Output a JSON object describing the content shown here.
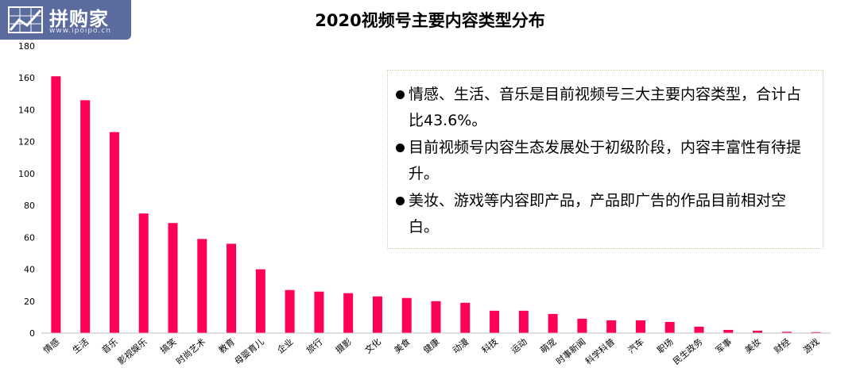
{
  "brand": {
    "name": "拼购家",
    "url": "www.ipoipo.cn"
  },
  "notes": [
    "情感、生活、音乐是目前视频号三大主要内容类型，合计占比43.6%。",
    "目前视频号内容生态发展处于初级阶段，内容丰富性有待提升。",
    "美妆、游戏等内容即产品，产品即广告的作品目前相对空白。"
  ],
  "chart_data": {
    "type": "bar",
    "title": "2020视频号主要内容类型分布",
    "xlabel": "",
    "ylabel": "",
    "ylim": [
      0,
      180
    ],
    "yticks": [
      0,
      20,
      40,
      60,
      80,
      100,
      120,
      140,
      160,
      180
    ],
    "grid": false,
    "categories": [
      "情感",
      "生活",
      "音乐",
      "影视娱乐",
      "搞笑",
      "时尚艺术",
      "教育",
      "母婴育儿",
      "企业",
      "旅行",
      "摄影",
      "文化",
      "美食",
      "健康",
      "动漫",
      "科技",
      "运动",
      "萌宠",
      "时事新闻",
      "科学科普",
      "汽车",
      "职场",
      "民生政务",
      "军事",
      "美妆",
      "财经",
      "游戏"
    ],
    "values": [
      161,
      146,
      126,
      75,
      69,
      59,
      56,
      40,
      27,
      26,
      25,
      23,
      22,
      20,
      19,
      14,
      14,
      12,
      9,
      8,
      8,
      7,
      4,
      2,
      1.5,
      0.8,
      0.6
    ],
    "bar_color": "#ff0055"
  }
}
